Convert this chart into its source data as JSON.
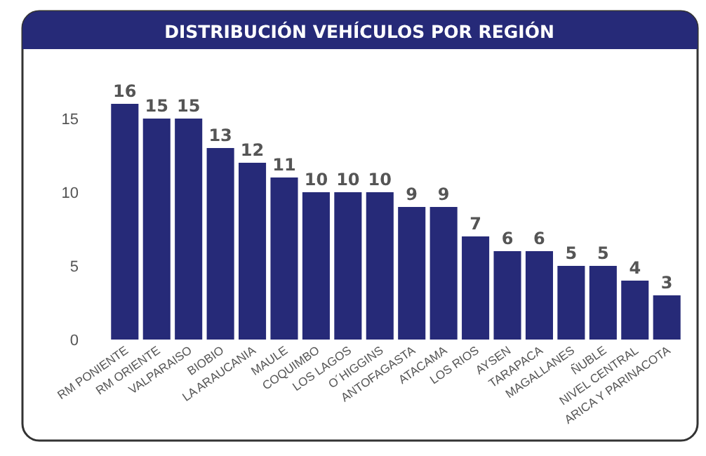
{
  "chart_data": {
    "type": "bar",
    "title": "DISTRIBUCIÓN VEHÍCULOS POR REGIÓN",
    "categories": [
      "RM PONIENTE",
      "RM ORIENTE",
      "VALPARAISO",
      "BIOBIO",
      "LA ARAUCANIA",
      "MAULE",
      "COQUIMBO",
      "LOS LAGOS",
      "O´HIGGINS",
      "ANTOFAGASTA",
      "ATACAMA",
      "LOS RIOS",
      "AYSEN",
      "TARAPACA",
      "MAGALLANES",
      "ÑUBLE",
      "NIVEL CENTRAL",
      "ARICA Y PARINACOTA"
    ],
    "values": [
      16,
      15,
      15,
      13,
      12,
      11,
      10,
      10,
      10,
      9,
      9,
      7,
      6,
      6,
      5,
      5,
      4,
      3
    ],
    "color": "#262a78",
    "ylim": [
      0,
      16
    ],
    "yticks": [
      0,
      5,
      10,
      15
    ],
    "grid": false,
    "data_labels": true
  }
}
